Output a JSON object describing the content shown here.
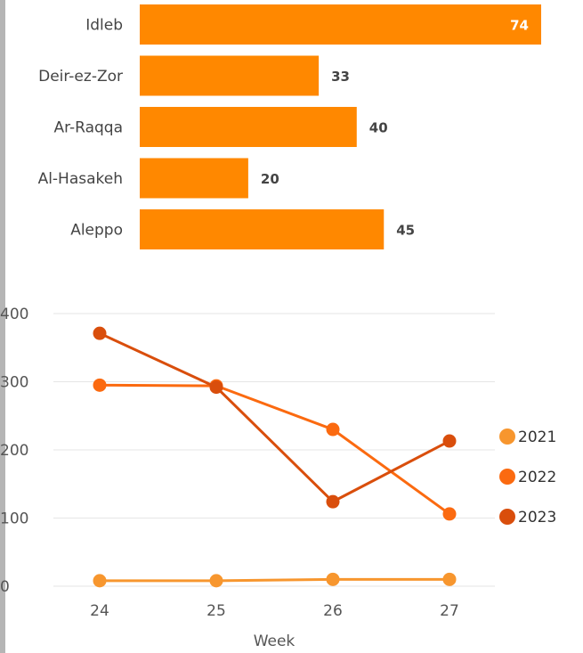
{
  "chart_data": [
    {
      "type": "bar",
      "orientation": "horizontal",
      "categories": [
        "Idleb",
        "Deir-ez-Zor",
        "Ar-Raqqa",
        "Al-Hasakeh",
        "Aleppo"
      ],
      "values": [
        74,
        33,
        40,
        20,
        45
      ],
      "xlim": [
        0,
        74
      ],
      "grid": false,
      "color": "#ff8800"
    },
    {
      "type": "line",
      "x": [
        24,
        25,
        26,
        27
      ],
      "xlabel": "Week",
      "ylim": [
        0,
        400
      ],
      "yticks": [
        0,
        100,
        200,
        300,
        400
      ],
      "grid": true,
      "legend_position": "right",
      "series": [
        {
          "name": "2021",
          "color": "#f7962e",
          "values": [
            8,
            8,
            10,
            10
          ]
        },
        {
          "name": "2022",
          "color": "#fb6a10",
          "values": [
            295,
            294,
            230,
            106
          ]
        },
        {
          "name": "2023",
          "color": "#d94e0c",
          "values": [
            371,
            292,
            124,
            213
          ]
        }
      ]
    }
  ]
}
